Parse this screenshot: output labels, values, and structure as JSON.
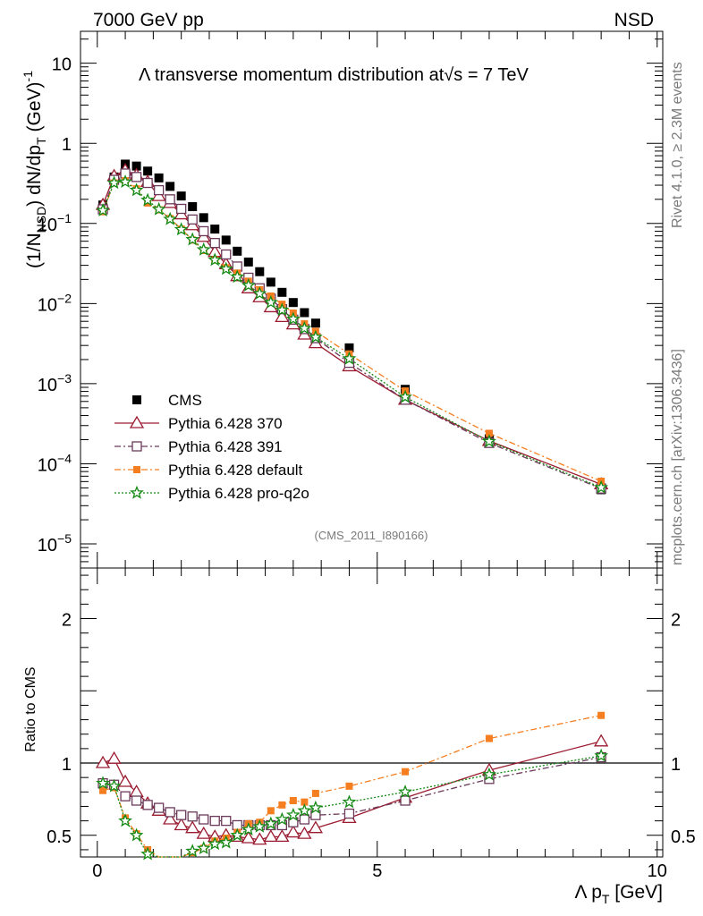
{
  "header": {
    "left": "7000 GeV pp",
    "right": "NSD"
  },
  "side_text": {
    "rivet": "Rivet 4.1.0, ≥ 2.3M events",
    "mcplots": "mcplots.cern.ch [arXiv:1306.3436]"
  },
  "watermark": "(CMS_2011_I890166)",
  "colors": {
    "cms": "#000000",
    "p370": "#9b1b30",
    "p391": "#6b3a5a",
    "pdefault": "#f57f20",
    "pq2o": "#148a14"
  },
  "chart_data": [
    {
      "type": "scatter",
      "title_pre": "Λ transverse momentum distribution at",
      "title_sqrt": "√s",
      "title_post": " = 7 TeV",
      "ylabel_pre": "(1/N",
      "ylabel_sub": "NSD",
      "ylabel_mid": ") dN/dp",
      "ylabel_sub2": "T",
      "ylabel_post": " (GeV)",
      "ylabel_sup": "-1",
      "yscale": "log",
      "ylim": [
        5e-06,
        25
      ],
      "xlim": [
        -0.3,
        10.1
      ],
      "y_ticks": [
        {
          "v": 10,
          "base": "10",
          "exp": ""
        },
        {
          "v": 1,
          "base": "1",
          "exp": ""
        },
        {
          "v": 0.1,
          "base": "10",
          "exp": "−1"
        },
        {
          "v": 0.01,
          "base": "10",
          "exp": "−2"
        },
        {
          "v": 0.001,
          "base": "10",
          "exp": "−3"
        },
        {
          "v": 0.0001,
          "base": "10",
          "exp": "−4"
        },
        {
          "v": 1e-05,
          "base": "10",
          "exp": "−5"
        }
      ],
      "legend": [
        "CMS",
        "Pythia 6.428 370",
        "Pythia 6.428 391",
        "Pythia 6.428 default",
        "Pythia 6.428 pro-q2o"
      ],
      "legend_position": "bottom-left",
      "x": [
        0.1,
        0.3,
        0.5,
        0.7,
        0.9,
        1.1,
        1.3,
        1.5,
        1.7,
        1.9,
        2.1,
        2.3,
        2.5,
        2.7,
        2.9,
        3.1,
        3.3,
        3.5,
        3.7,
        3.9,
        4.5,
        5.5,
        7.0,
        9.0
      ],
      "series": [
        {
          "name": "CMS",
          "marker": "filled-square",
          "values": [
            0.17,
            0.38,
            0.55,
            0.52,
            0.45,
            0.37,
            0.29,
            0.22,
            0.162,
            0.118,
            0.085,
            0.062,
            0.045,
            0.033,
            0.025,
            0.0185,
            0.0138,
            0.0103,
            0.0077,
            0.0057,
            0.0028,
            0.00085,
            0.000205,
            4.75e-05
          ]
        },
        {
          "name": "Pythia 6.428 370",
          "marker": "open-triangle",
          "line": "solid",
          "values": [
            0.17,
            0.39,
            0.46,
            0.4,
            0.33,
            0.22,
            0.18,
            0.13,
            0.095,
            0.068,
            0.044,
            0.031,
            0.022,
            0.0155,
            0.012,
            0.009,
            0.0068,
            0.0055,
            0.0041,
            0.0032,
            0.00165,
            0.00063,
            0.000193,
            5.55e-05
          ]
        },
        {
          "name": "Pythia 6.428 391",
          "marker": "open-square",
          "line": "dashdot",
          "values": [
            0.15,
            0.35,
            0.42,
            0.38,
            0.32,
            0.26,
            0.2,
            0.152,
            0.112,
            0.08,
            0.057,
            0.041,
            0.029,
            0.021,
            0.0155,
            0.0115,
            0.0085,
            0.0063,
            0.0048,
            0.0037,
            0.00182,
            0.00063,
            0.000182,
            4.9e-05
          ]
        },
        {
          "name": "Pythia 6.428 default",
          "marker": "filled-square-small",
          "line": "dashdot",
          "values": [
            0.14,
            0.32,
            0.34,
            0.27,
            0.18,
            0.148,
            0.115,
            0.085,
            0.062,
            0.046,
            0.035,
            0.028,
            0.024,
            0.019,
            0.0149,
            0.0124,
            0.0098,
            0.0076,
            0.0056,
            0.0045,
            0.00235,
            0.00081,
            0.00024,
            6.05e-05
          ]
        },
        {
          "name": "Pythia 6.428 pro-q2o",
          "marker": "star",
          "line": "dotted",
          "values": [
            0.145,
            0.32,
            0.33,
            0.26,
            0.195,
            0.15,
            0.113,
            0.084,
            0.063,
            0.047,
            0.035,
            0.027,
            0.0215,
            0.0168,
            0.0133,
            0.0103,
            0.0083,
            0.0064,
            0.0049,
            0.0038,
            0.00205,
            0.00068,
            0.00019,
            5.05e-05
          ]
        }
      ]
    },
    {
      "type": "line",
      "ylabel": "Ratio to CMS",
      "xlabel_pre": "Λ p",
      "xlabel_sub": "T",
      "xlabel_post": " [GeV]",
      "ylim": [
        0.35,
        2.35
      ],
      "xlim": [
        -0.3,
        10.1
      ],
      "y_ticks": [
        {
          "v": 0.5,
          "label": "0.5"
        },
        {
          "v": 1,
          "label": "1"
        },
        {
          "v": 2,
          "label": "2"
        }
      ],
      "x_ticks": [
        {
          "v": 0,
          "label": "0"
        },
        {
          "v": 5,
          "label": "5"
        },
        {
          "v": 10,
          "label": "10"
        }
      ],
      "x": [
        0.1,
        0.3,
        0.5,
        0.7,
        0.9,
        1.1,
        1.3,
        1.5,
        1.7,
        1.9,
        2.1,
        2.3,
        2.5,
        2.7,
        2.9,
        3.1,
        3.3,
        3.5,
        3.7,
        3.9,
        4.5,
        5.5,
        7.0,
        9.0
      ],
      "series": [
        {
          "name": "Pythia 6.428 370",
          "values": [
            1.0,
            1.03,
            0.87,
            0.8,
            0.72,
            0.67,
            0.61,
            0.57,
            0.55,
            0.51,
            0.49,
            0.5,
            0.49,
            0.48,
            0.47,
            0.49,
            0.49,
            0.52,
            0.51,
            0.55,
            0.62,
            0.76,
            0.95,
            1.15
          ]
        },
        {
          "name": "Pythia 6.428 391",
          "values": [
            0.86,
            0.85,
            0.77,
            0.74,
            0.71,
            0.69,
            0.66,
            0.64,
            0.63,
            0.61,
            0.6,
            0.6,
            0.57,
            0.57,
            0.57,
            0.57,
            0.57,
            0.59,
            0.61,
            0.64,
            0.65,
            0.74,
            0.89,
            1.04
          ]
        },
        {
          "name": "Pythia 6.428 default",
          "values": [
            0.81,
            0.83,
            0.62,
            0.51,
            0.4,
            0.35,
            0.35,
            0.35,
            0.38,
            0.41,
            0.46,
            0.48,
            0.52,
            0.58,
            0.59,
            0.67,
            0.71,
            0.74,
            0.73,
            0.79,
            0.84,
            0.94,
            1.17,
            1.33
          ]
        },
        {
          "name": "Pythia 6.428 pro-q2o",
          "values": [
            0.86,
            0.84,
            0.6,
            0.5,
            0.37,
            0.34,
            0.34,
            0.35,
            0.39,
            0.41,
            0.44,
            0.45,
            0.5,
            0.54,
            0.56,
            0.58,
            0.61,
            0.64,
            0.67,
            0.69,
            0.73,
            0.8,
            0.92,
            1.05
          ]
        }
      ]
    }
  ]
}
